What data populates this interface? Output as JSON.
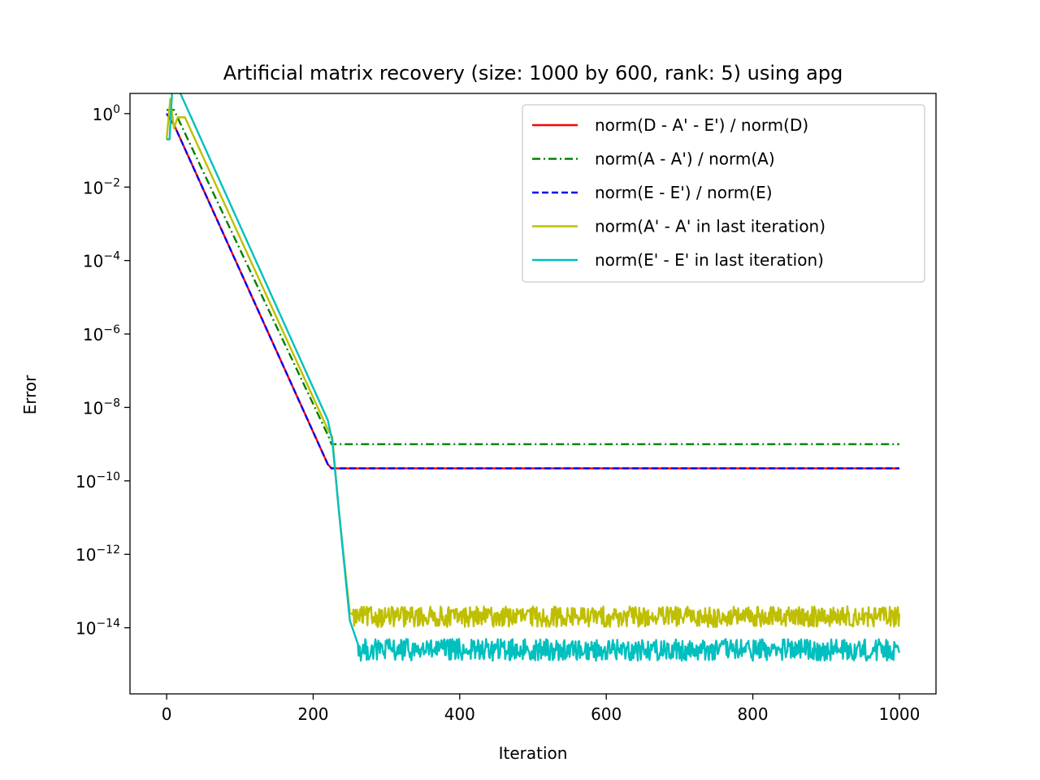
{
  "chart_data": {
    "type": "line",
    "title": "Artificial matrix recovery (size: 1000 by 600, rank: 5) using apg",
    "xlabel": "Iteration",
    "ylabel": "Error",
    "xlim": [
      -50,
      1050
    ],
    "ylim_log10": [
      -15.8,
      0.55
    ],
    "y_scale": "log",
    "grid": false,
    "legend_position": "top-right",
    "x_ticks": [
      0,
      200,
      400,
      600,
      800,
      1000
    ],
    "x_tick_labels": [
      "0",
      "200",
      "400",
      "600",
      "800",
      "1000"
    ],
    "y_ticks_exponent": [
      0,
      -2,
      -4,
      -6,
      -8,
      -10,
      -12,
      -14
    ],
    "y_tick_base": "10",
    "y_tick_exponents_text": [
      "0",
      "−2",
      "−4",
      "−6",
      "−8",
      "−10",
      "−12",
      "−14"
    ],
    "series": [
      {
        "name": "norm(D - A' - E') / norm(D)",
        "color": "#ff0000",
        "style": "solid",
        "x": [
          0,
          10,
          220,
          225,
          1000
        ],
        "log10_y": [
          0.0,
          -0.3,
          -9.55,
          -9.66,
          -9.66
        ]
      },
      {
        "name": "norm(A - A') / norm(A)",
        "color": "#008000",
        "style": "dashdot",
        "x": [
          0,
          10,
          220,
          225,
          1000
        ],
        "log10_y": [
          0.1,
          0.1,
          -8.75,
          -9.0,
          -9.0
        ]
      },
      {
        "name": "norm(E - E') / norm(E)",
        "color": "#0000ff",
        "style": "dashed",
        "x": [
          0,
          10,
          220,
          225,
          1000
        ],
        "log10_y": [
          0.0,
          -0.3,
          -9.55,
          -9.66,
          -9.66
        ]
      },
      {
        "name": "norm(A' - A' in last iteration)",
        "color": "#bfbf00",
        "style": "solid",
        "x": [
          0,
          5,
          10,
          15,
          25,
          220,
          226,
          235,
          250,
          260,
          1000
        ],
        "log10_y": [
          -0.7,
          0.4,
          -0.4,
          -0.1,
          -0.1,
          -8.6,
          -8.8,
          -10.8,
          -13.6,
          -13.7,
          -13.75
        ],
        "noise_from_x": 255,
        "noise_level_log10": -13.7,
        "noise_amplitude": 0.28
      },
      {
        "name": "norm(E' - E' in last iteration)",
        "color": "#00bfbf",
        "style": "solid",
        "x": [
          0,
          4,
          8,
          12,
          220,
          226,
          235,
          250,
          262,
          1000
        ],
        "log10_y": [
          -0.7,
          -0.7,
          0.8,
          0.85,
          -8.35,
          -8.9,
          -10.8,
          -13.8,
          -14.5,
          -14.6
        ],
        "noise_from_x": 262,
        "noise_level_log10": -14.6,
        "noise_amplitude": 0.3
      }
    ]
  }
}
